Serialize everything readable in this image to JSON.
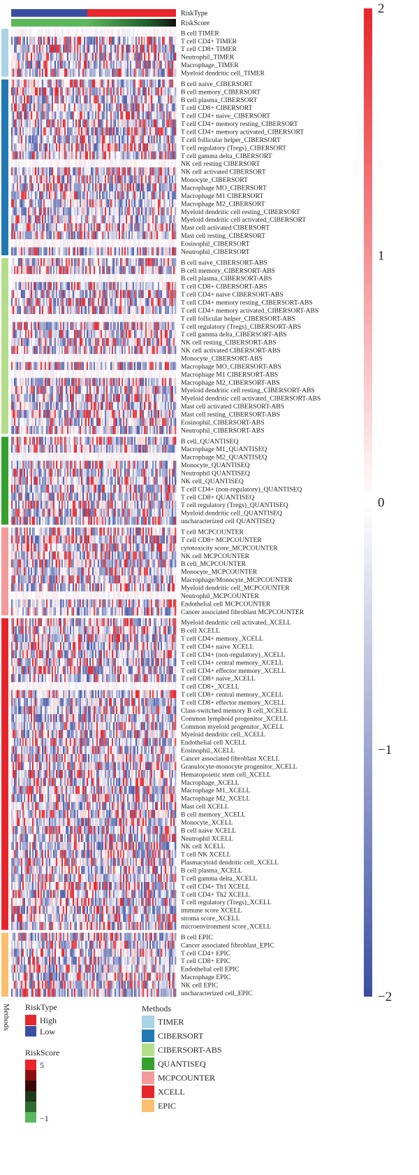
{
  "chart_data": {
    "type": "heatmap",
    "annotations": {
      "risk_type_label": "RiskType",
      "risk_score_label": "RiskScore",
      "methods_label": "Methods",
      "high_fraction": 0.46
    },
    "colorbar": {
      "ticks": [
        "2",
        "1",
        "0",
        "−1",
        "−2"
      ],
      "range": [
        -2,
        2
      ],
      "low_color": "#3a4ea1",
      "mid_color": "#ffffff",
      "high_color": "#e8262b"
    },
    "colors": {
      "risk_high": "#e8262b",
      "risk_low": "#3a4ea1",
      "score_low": "#5cb85c",
      "score_high": "#111111"
    },
    "legends": {
      "risk_type": {
        "title": "RiskType",
        "items": [
          {
            "label": "High",
            "color": "#e8262b"
          },
          {
            "label": "Low",
            "color": "#3a4ea1"
          }
        ]
      },
      "risk_score": {
        "title": "RiskScore",
        "max_label": "5",
        "min_label": "−1",
        "colors": [
          "#e8262b",
          "#8b1010",
          "#3a0808",
          "#1d3a1d",
          "#2e6b2e",
          "#5cb85c"
        ]
      },
      "methods": {
        "title": "Methods",
        "items": [
          {
            "label": "TIMER",
            "color": "#a9d3e6"
          },
          {
            "label": "CIBERSORT",
            "color": "#2078b4"
          },
          {
            "label": "CIBERSORT-ABS",
            "color": "#b3de8a"
          },
          {
            "label": "QUANTISEQ",
            "color": "#33a12d"
          },
          {
            "label": "MCPCOUNTER",
            "color": "#f39a9b"
          },
          {
            "label": "XCELL",
            "color": "#e6252a"
          },
          {
            "label": "EPIC",
            "color": "#fbbf6e"
          }
        ]
      }
    },
    "groups": [
      {
        "method": "TIMER",
        "color": "#a9d3e6",
        "rows": [
          "B cell TIMER",
          "T cell CD4+ TIMER",
          "T cell CD8+ TIMER",
          "Neutrophil_TIMER",
          "Macrophage_TIMER",
          "Myeloid dendritic cell_TIMER"
        ]
      },
      {
        "method": "CIBERSORT",
        "color": "#2078b4",
        "rows": [
          "B cell naive_CIBERSORT",
          "B cell memory_CIBERSORT",
          "B cell plasma_CIBERSORT",
          "T cell CD8+ CIBERSORT",
          "T cell CD4+ naive_CIBERSORT",
          "T cell CD4+ memory resting_CIBERSORT",
          "T cell CD4+ memory activated_CIBERSORT",
          "T cell follicular helper_CIBERSORT",
          "T cell regulatory (Tregs)_CIBERSORT",
          "T cell gamma delta_CIBERSORT",
          "NK cell resting CIBERSORT",
          "NK cell activated CIBERSORT",
          "Monocyte_CIBERSORT",
          "Macrophage MO_CIBERSORT",
          "Macrophage M1 CIBERSORT",
          "Macrophage M2_CIBERSORT",
          "Myeloid dendritic cell resting_CIBERSORT",
          "Myeloid dendritic cell activated_CIBERSORT",
          "Mast cell activated CIBERSORT",
          "Mast cell resting_CIBERSORT",
          "Eosinophil_CIBERSORT",
          "Neutrophil_CIBERSORT"
        ]
      },
      {
        "method": "CIBERSORT-ABS",
        "color": "#b3de8a",
        "rows": [
          "B cell naive_CIBERSORT-ABS",
          "B cell memory_CIBERSORT-ABS",
          "B cell plasma_CIBERSORT-ABS",
          "T cell CD8+ CIBERSORT-ABS",
          "T cell CD4+ naive CIBERSORT-ABS",
          "T cell CD4+ memory resting_CIBERSORT-ABS",
          "T cell CD4+ memory activated_CIBERSORT-ABS",
          "T cell follicular helper_CIBERSORT-ABS",
          "T cell regulatory (Tregs)_CIBERSORT-ABS",
          "T cell gamma delta_CIBERSORT-ABS",
          "NK cell resting_CIBERSORT-ABS",
          "NK cell activated CIBERSORT-ABS",
          "Monocyte_CIBERSORT-ABS",
          "Macrophage MO_CIBERSORT-ABS",
          "Macrophage M1 CIBERSORT-ABS",
          "Macrophage M2_CIBERSORT-ABS",
          "Myeloid dendritic cell resting_CIBERSORT-ABS",
          "Myeloid dendritic cell activated_CIBERSORT-ABS",
          "Mast cell activated CIBERSORT-ABS",
          "Mast cell resting_CIBERSORT-ABS",
          "Eosinophil_CIBERSORT-ABS",
          "Neutrophil_CIBERSORT-ABS"
        ]
      },
      {
        "method": "QUANTISEQ",
        "color": "#33a12d",
        "rows": [
          "B cell_QUANTISEQ",
          "Macrophage M1_QUANTISEQ",
          "Macrophage M2_QUANTISEQ",
          "Monocyte_QUANTISEQ",
          "Neutrophil QUANTISEQ",
          "NK cell_QUANTISEQ",
          "T cell CD4+ (non-regulatory)_QUANTISEQ",
          "T cell CD8+ QUANTISEQ",
          "T cell regulatory (Tregs)_QUANTISEQ",
          "Myeloid dendritic cell_QUANTISEQ",
          "uncharacterized cell QUANTISEQ"
        ]
      },
      {
        "method": "MCPCOUNTER",
        "color": "#f39a9b",
        "rows": [
          "T cell MCPCOUNTER",
          "T cell CD8+ MCPCOUNTER",
          "cytotoxicity score_MCPCOUNTER",
          "NK cell MCPCOUNTER",
          "B cell_MCPCOUNTER",
          "Monocyte_MCPCOUNTER",
          "Macrophage/Monocyte_MCPCOUNTER",
          "Myeloid dendritic cell_MCPCOUNTER",
          "Neutrophil_MCPCOUNTER",
          "Endothelial cell MCPCOUNTER",
          "Cancer associated fibroblast MCPCOUNTER"
        ]
      },
      {
        "method": "XCELL",
        "color": "#e6252a",
        "rows": [
          "Myeloid dendritic cell activated_XCELL",
          "B cell XCELL",
          "T cell CD4+ memory_XCELL",
          "T cell CD4+ naive XCELL",
          "T cell CD4+ (non-regulatory)_XCELL",
          "T cell CD4+ central memory_XCELL",
          "T cell CD4+ effector memory_XCELL",
          "T cell CD8+ naive_XCELL",
          "T cell CD8+_XCELL",
          "T cell CD8+ central memory_XCELL",
          "T cell CD8+ effector memory_XCELL",
          "Class-switched memory B cell_XCELL",
          "Common lymphoid progenitor_XCELL",
          "Common myeloid progenitor_XCELL",
          "Myeloid dendritic cell_XCELL",
          "Endothelial cell XCELL",
          "Eosinophil_XCELL",
          "Cancer associated fibroblast XCELL",
          "Granulocyte-monocyte progenitor_XCELL",
          "Hematopoietic stem cell_XCELL",
          "Macrophage_XCELL",
          "Macrophage M1_XCELL",
          "Macrophage M2_XCELL",
          "Mast cell XCELL",
          "B cell memory_XCELL",
          "Monocyte_XCELL",
          "B cell naive XCELL",
          "Neutrophil XCELL",
          "NK cell XCELL",
          "T cell NK XCELL",
          "Plasmacytoid dendritic cell_XCELL",
          "B cell plasma_XCELL",
          "T cell gamma delta_XCELL",
          "T cell CD4+ Th1 XCELL",
          "T cell CD4+ Th2 XCELL",
          "T cell regulatory (Tregs)_XCELL",
          "immune score XCELL",
          "stroma score_XCELL",
          "microenvironment score_XCELL"
        ]
      },
      {
        "method": "EPIC",
        "color": "#fbbf6e",
        "rows": [
          "B cell EPIC",
          "Cancer associated fibroblast_EPIC",
          "T cell CD4+ EPIC",
          "T cell CD8+ EPIC",
          "Endothelial cell EPIC",
          "Macrophage EPIC",
          "NK cell EPIC",
          "uncharacterized cell_EPIC"
        ]
      }
    ]
  }
}
